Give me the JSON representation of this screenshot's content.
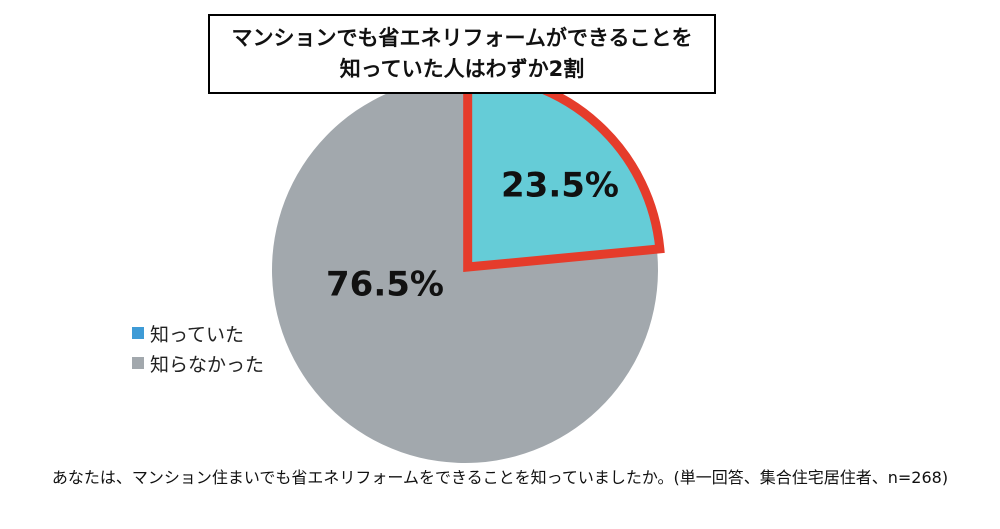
{
  "title": {
    "line1": "マンションでも省エネリフォームができることを",
    "line2": "知っていた人はわずか2割"
  },
  "footnote": "あなたは、マンション住まいでも省エネリフォームをできることを知っていましたか。(単一回答、集合住宅居住者、n=268)",
  "chart_data": {
    "type": "pie",
    "title": "マンションでも省エネリフォームができることを知っていた人はわずか2割",
    "slices": [
      {
        "name": "知っていた",
        "value": 23.5,
        "label": "23.5%",
        "color": "#65CCD7",
        "highlight_color": "#E53C2B"
      },
      {
        "name": "知らなかった",
        "value": 76.5,
        "label": "76.5%",
        "color": "#A2A8AD"
      }
    ],
    "legend": {
      "placement": "left",
      "items": [
        {
          "name": "知っていた",
          "color": "#3E9BD6"
        },
        {
          "name": "知らなかった",
          "color": "#A2A8AD"
        }
      ]
    }
  }
}
